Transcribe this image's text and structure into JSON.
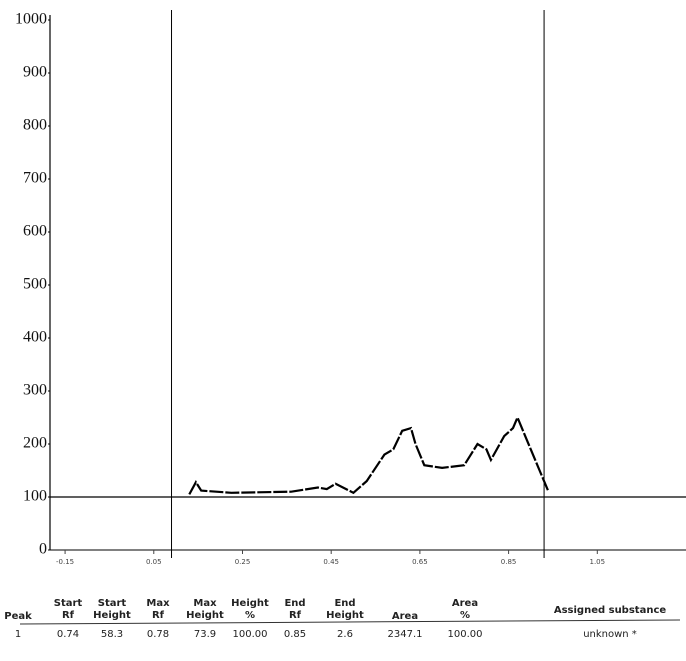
{
  "chart_data": {
    "type": "line",
    "x": [
      0.13,
      0.145,
      0.157,
      0.225,
      0.36,
      0.42,
      0.44,
      0.46,
      0.5,
      0.53,
      0.57,
      0.59,
      0.61,
      0.63,
      0.64,
      0.66,
      0.7,
      0.75,
      0.78,
      0.8,
      0.81,
      0.84,
      0.86,
      0.87,
      0.89,
      0.92,
      0.94
    ],
    "series": [
      {
        "color": "#000000",
        "values": [
          105,
          128,
          112,
          108,
          110,
          118,
          115,
          125,
          108,
          130,
          180,
          190,
          225,
          230,
          200,
          160,
          155,
          160,
          200,
          190,
          170,
          215,
          230,
          250,
          210,
          150,
          110
        ]
      }
    ],
    "xlim": [
      -0.184,
      1.25
    ],
    "xticks": [
      -0.15,
      0.05,
      0.25,
      0.45,
      0.65,
      0.85,
      1.05
    ],
    "ylim": [
      0,
      1000
    ],
    "yticks": [
      0,
      100,
      200,
      300,
      400,
      500,
      600,
      700,
      800,
      900,
      1000
    ],
    "baseline": 100,
    "markers_x": [
      0.09,
      0.93
    ]
  },
  "table": {
    "headers": [
      [
        "Peak"
      ],
      [
        "Start",
        "Rf"
      ],
      [
        "Start",
        "Height"
      ],
      [
        "Max",
        "Rf"
      ],
      [
        "Max",
        "Height"
      ],
      [
        "Height",
        "%"
      ],
      [
        "End",
        "Rf"
      ],
      [
        "End",
        "Height"
      ],
      [
        "Area"
      ],
      [
        "Area",
        "%"
      ],
      [
        "Assigned substance"
      ]
    ],
    "rows": [
      [
        "1",
        "0.74",
        "58.3",
        "0.78",
        "73.9",
        "100.00",
        "0.85",
        "2.6",
        "2347.1",
        "100.00",
        "unknown *"
      ]
    ]
  }
}
